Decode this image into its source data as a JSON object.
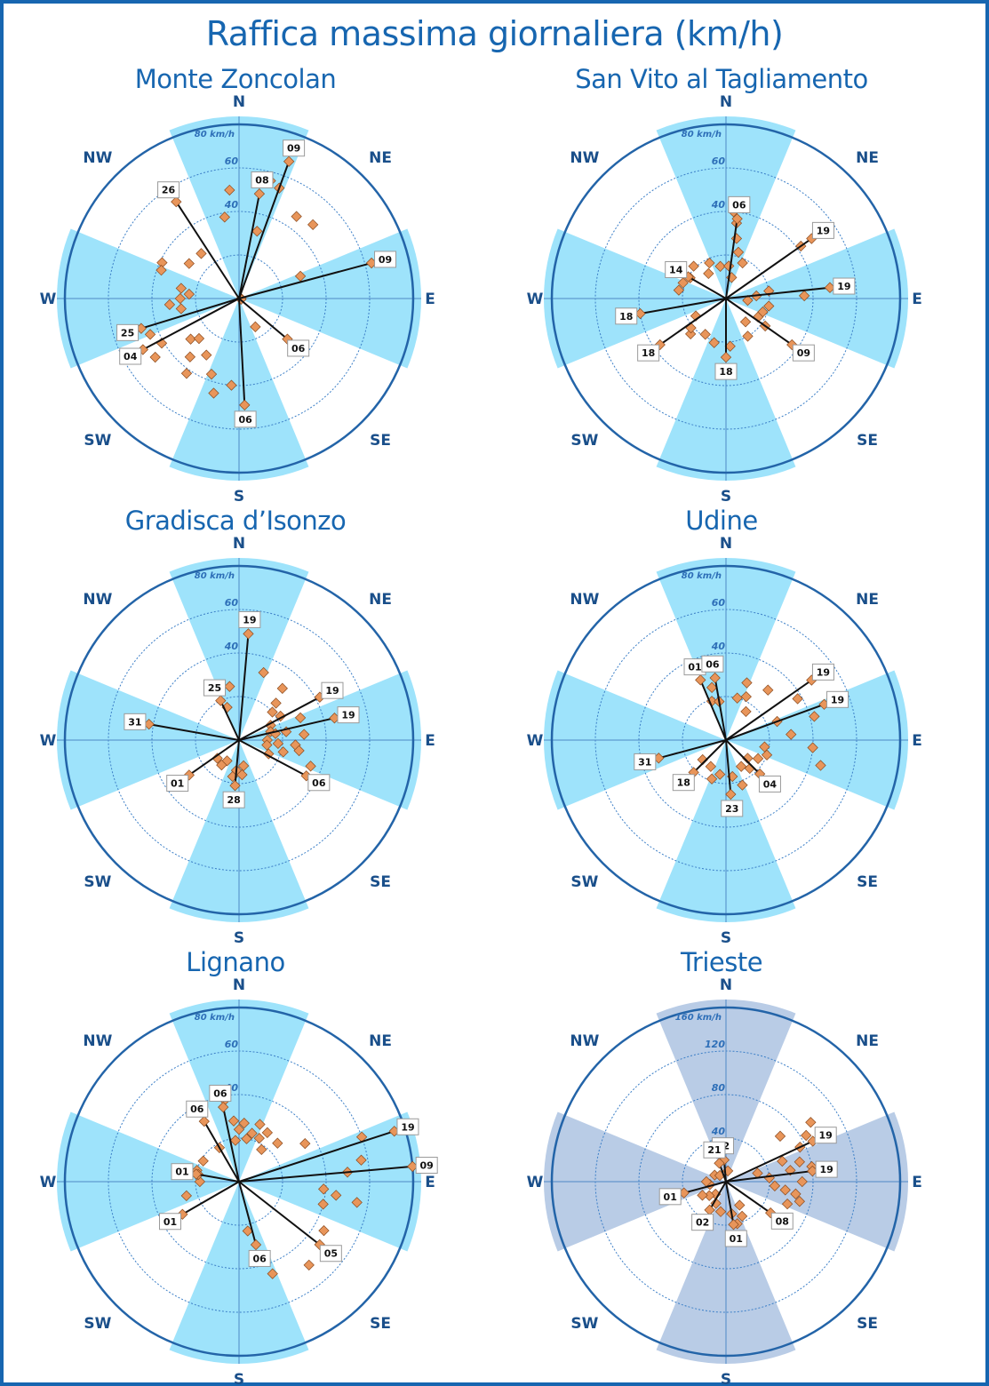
{
  "colors": {
    "frame": "#1766b0",
    "title": "#1766b0",
    "sector": "#9ee3fb",
    "sector_alt": "#b9cce6",
    "ring": "#2364a8",
    "axis": "#4f88c5",
    "label": "#1a4f8a",
    "grid_label": "#2e6fb8",
    "marker": "#e8955a",
    "marker_edge": "#8a4a1e"
  },
  "title": "Raffica massima giornaliera (km/h)",
  "compass": [
    "N",
    "NE",
    "E",
    "SE",
    "S",
    "SW",
    "W",
    "NW"
  ],
  "chart_data": [
    {
      "type": "scatter",
      "station": "Monte Zoncolan",
      "rmax": 80,
      "rmax_label": "80 km/h",
      "grid": [
        20,
        40,
        60
      ],
      "grid_labels": [
        "40",
        "60"
      ],
      "sector_color": "sector",
      "points": [
        [
          15,
          56
        ],
        [
          20,
          54
        ],
        [
          35,
          46
        ],
        [
          45,
          48
        ],
        [
          70,
          30
        ],
        [
          90,
          1
        ],
        [
          110,
          1
        ],
        [
          150,
          15
        ],
        [
          -5,
          50
        ],
        [
          -10,
          38
        ],
        [
          15,
          32
        ],
        [
          -40,
          27
        ],
        [
          -55,
          28
        ],
        [
          -65,
          39
        ],
        [
          -70,
          38
        ],
        [
          -80,
          27
        ],
        [
          -85,
          23
        ],
        [
          -90,
          27
        ],
        [
          -95,
          32
        ],
        [
          -100,
          27
        ],
        [
          -112,
          44
        ],
        [
          -120,
          41
        ],
        [
          -125,
          47
        ],
        [
          -130,
          29
        ],
        [
          -135,
          26
        ],
        [
          -140,
          35
        ],
        [
          -145,
          42
        ],
        [
          -150,
          30
        ],
        [
          -165,
          45
        ],
        [
          -175,
          40
        ],
        [
          -160,
          37
        ]
      ],
      "labels": [
        {
          "day": "09",
          "az": 20,
          "r": 67,
          "line": true
        },
        {
          "day": "08",
          "az": 11,
          "r": 49,
          "line": true
        },
        {
          "day": "09",
          "az": 75,
          "r": 63,
          "line": true
        },
        {
          "day": "06",
          "az": 130,
          "r": 29,
          "line": true
        },
        {
          "day": "06",
          "az": 177,
          "r": 49,
          "line": true
        },
        {
          "day": "26",
          "az": -33,
          "r": 53,
          "line": true
        },
        {
          "day": "25",
          "az": -107,
          "r": 47,
          "line": true
        },
        {
          "day": "04",
          "az": -118,
          "r": 50,
          "line": true
        }
      ]
    },
    {
      "type": "scatter",
      "station": "San Vito al Tagliamento",
      "rmax": 80,
      "rmax_label": "80 km/h",
      "grid": [
        20,
        40,
        60
      ],
      "grid_labels": [
        "40",
        "60"
      ],
      "sector_color": "sector",
      "points": [
        [
          5,
          40
        ],
        [
          8,
          35
        ],
        [
          10,
          28
        ],
        [
          15,
          22
        ],
        [
          25,
          18
        ],
        [
          55,
          42
        ],
        [
          80,
          20
        ],
        [
          85,
          14
        ],
        [
          88,
          36
        ],
        [
          95,
          10
        ],
        [
          100,
          20
        ],
        [
          110,
          18
        ],
        [
          120,
          17
        ],
        [
          125,
          22
        ],
        [
          140,
          14
        ],
        [
          150,
          20
        ],
        [
          175,
          22
        ],
        [
          -165,
          21
        ],
        [
          -150,
          19
        ],
        [
          -135,
          23
        ],
        [
          -130,
          21
        ],
        [
          -120,
          16
        ],
        [
          -80,
          22
        ],
        [
          -70,
          21
        ],
        [
          -60,
          19
        ],
        [
          -45,
          21
        ],
        [
          -35,
          14
        ],
        [
          -25,
          18
        ],
        [
          -10,
          15
        ],
        [
          5,
          15
        ],
        [
          15,
          10
        ]
      ],
      "labels": [
        {
          "day": "06",
          "az": 8,
          "r": 37,
          "line": true
        },
        {
          "day": "19",
          "az": 55,
          "r": 48,
          "line": true
        },
        {
          "day": "19",
          "az": 84,
          "r": 48,
          "line": true
        },
        {
          "day": "14",
          "az": -60,
          "r": 20,
          "line": true
        },
        {
          "day": "18",
          "az": -100,
          "r": 40,
          "line": true
        },
        {
          "day": "18",
          "az": -125,
          "r": 37,
          "line": true
        },
        {
          "day": "18",
          "az": 180,
          "r": 27,
          "line": true
        },
        {
          "day": "09",
          "az": 125,
          "r": 37,
          "line": true
        }
      ]
    },
    {
      "type": "scatter",
      "station": "Gradisca d’Isonzo",
      "rmax": 80,
      "rmax_label": "80 km/h",
      "grid": [
        20,
        40,
        60
      ],
      "grid_labels": [
        "40",
        "60"
      ],
      "sector_color": "sector",
      "points": [
        [
          20,
          33
        ],
        [
          40,
          31
        ],
        [
          45,
          24
        ],
        [
          50,
          20
        ],
        [
          60,
          22
        ],
        [
          70,
          30
        ],
        [
          65,
          16
        ],
        [
          75,
          15
        ],
        [
          80,
          22
        ],
        [
          85,
          30
        ],
        [
          95,
          26
        ],
        [
          100,
          28
        ],
        [
          105,
          21
        ],
        [
          110,
          35
        ],
        [
          80,
          17
        ],
        [
          90,
          13
        ],
        [
          95,
          18
        ],
        [
          100,
          13
        ],
        [
          115,
          15
        ],
        [
          -150,
          11
        ],
        [
          -145,
          14
        ],
        [
          -175,
          14
        ],
        [
          -170,
          17
        ],
        [
          175,
          16
        ],
        [
          170,
          12
        ],
        [
          -130,
          13
        ],
        [
          -10,
          25
        ],
        [
          -20,
          16
        ]
      ],
      "labels": [
        {
          "day": "19",
          "az": 5,
          "r": 49,
          "line": true
        },
        {
          "day": "19",
          "az": 62,
          "r": 42,
          "line": true
        },
        {
          "day": "19",
          "az": 77,
          "r": 45,
          "line": true
        },
        {
          "day": "06",
          "az": 118,
          "r": 35,
          "line": true
        },
        {
          "day": "25",
          "az": -25,
          "r": 20,
          "line": true
        },
        {
          "day": "31",
          "az": -80,
          "r": 42,
          "line": true
        },
        {
          "day": "01",
          "az": -125,
          "r": 28,
          "line": true
        },
        {
          "day": "28",
          "az": -175,
          "r": 21,
          "line": true
        }
      ]
    },
    {
      "type": "scatter",
      "station": "Udine",
      "rmax": 80,
      "rmax_label": "80 km/h",
      "grid": [
        20,
        40,
        60
      ],
      "grid_labels": [
        "40",
        "60"
      ],
      "sector_color": "sector",
      "points": [
        [
          -15,
          25
        ],
        [
          -20,
          19
        ],
        [
          -10,
          18
        ],
        [
          15,
          20
        ],
        [
          25,
          22
        ],
        [
          40,
          30
        ],
        [
          60,
          38
        ],
        [
          70,
          25
        ],
        [
          75,
          42
        ],
        [
          85,
          30
        ],
        [
          95,
          40
        ],
        [
          100,
          18
        ],
        [
          105,
          45
        ],
        [
          110,
          20
        ],
        [
          120,
          17
        ],
        [
          130,
          13
        ],
        [
          140,
          17
        ],
        [
          150,
          14
        ],
        [
          -170,
          16
        ],
        [
          -160,
          19
        ],
        [
          -150,
          14
        ],
        [
          -130,
          14
        ],
        [
          160,
          22
        ],
        [
          170,
          17
        ],
        [
          20,
          28
        ],
        [
          35,
          16
        ]
      ],
      "labels": [
        {
          "day": "01",
          "az": -23,
          "r": 30,
          "line": true
        },
        {
          "day": "06",
          "az": -10,
          "r": 29,
          "line": true
        },
        {
          "day": "19",
          "az": 55,
          "r": 48,
          "line": true
        },
        {
          "day": "19",
          "az": 70,
          "r": 48,
          "line": true
        },
        {
          "day": "31",
          "az": -105,
          "r": 32,
          "line": true
        },
        {
          "day": "18",
          "az": -135,
          "r": 21,
          "line": true
        },
        {
          "day": "04",
          "az": 135,
          "r": 22,
          "line": true
        },
        {
          "day": "23",
          "az": 175,
          "r": 25,
          "line": true
        }
      ]
    },
    {
      "type": "scatter",
      "station": "Lignano",
      "rmax": 80,
      "rmax_label": "80 km/h",
      "grid": [
        20,
        40,
        60
      ],
      "grid_labels": [
        "40",
        "60"
      ],
      "sector_color": "sector",
      "points": [
        [
          -10,
          38
        ],
        [
          -5,
          28
        ],
        [
          0,
          24
        ],
        [
          5,
          27
        ],
        [
          10,
          20
        ],
        [
          15,
          23
        ],
        [
          -5,
          19
        ],
        [
          20,
          28
        ],
        [
          25,
          22
        ],
        [
          30,
          26
        ],
        [
          35,
          18
        ],
        [
          45,
          25
        ],
        [
          60,
          35
        ],
        [
          70,
          60
        ],
        [
          80,
          57
        ],
        [
          85,
          50
        ],
        [
          95,
          39
        ],
        [
          98,
          45
        ],
        [
          100,
          55
        ],
        [
          105,
          40
        ],
        [
          120,
          45
        ],
        [
          140,
          50
        ],
        [
          160,
          45
        ],
        [
          170,
          23
        ],
        [
          -30,
          18
        ],
        [
          -60,
          19
        ],
        [
          -75,
          20
        ],
        [
          -90,
          18
        ],
        [
          -105,
          25
        ],
        [
          -80,
          19
        ]
      ],
      "labels": [
        {
          "day": "06",
          "az": -12,
          "r": 35,
          "line": true
        },
        {
          "day": "06",
          "az": -30,
          "r": 32,
          "line": true
        },
        {
          "day": "19",
          "az": 72,
          "r": 75,
          "line": true
        },
        {
          "day": "09",
          "az": 85,
          "r": 80,
          "line": true
        },
        {
          "day": "01",
          "az": -80,
          "r": 20,
          "line": true
        },
        {
          "day": "01",
          "az": -120,
          "r": 30,
          "line": true
        },
        {
          "day": "05",
          "az": 128,
          "r": 47,
          "line": true
        },
        {
          "day": "06",
          "az": 165,
          "r": 30,
          "line": true
        }
      ]
    },
    {
      "type": "scatter",
      "station": "Trieste",
      "rmax": 160,
      "rmax_label": "160  km/h",
      "grid": [
        40,
        80,
        120
      ],
      "grid_labels": [
        "40",
        "80",
        "120"
      ],
      "sector_color": "sector_alt",
      "points": [
        [
          55,
          95
        ],
        [
          60,
          85
        ],
        [
          65,
          75
        ],
        [
          75,
          70
        ],
        [
          80,
          60
        ],
        [
          85,
          40
        ],
        [
          90,
          70
        ],
        [
          95,
          45
        ],
        [
          98,
          55
        ],
        [
          100,
          65
        ],
        [
          105,
          70
        ],
        [
          110,
          60
        ],
        [
          80,
          80
        ],
        [
          70,
          55
        ],
        [
          75,
          30
        ],
        [
          150,
          25
        ],
        [
          155,
          35
        ],
        [
          165,
          40
        ],
        [
          170,
          30
        ],
        [
          -170,
          28
        ],
        [
          -155,
          22
        ],
        [
          -140,
          15
        ],
        [
          -130,
          20
        ],
        [
          -120,
          25
        ],
        [
          -100,
          15
        ],
        [
          -90,
          18
        ],
        [
          -60,
          12
        ],
        [
          -45,
          8
        ],
        [
          10,
          10
        ],
        [
          50,
          65
        ]
      ],
      "labels": [
        {
          "day": "12",
          "az": -5,
          "r": 20,
          "line": true
        },
        {
          "day": "21",
          "az": -20,
          "r": 18,
          "line": true
        },
        {
          "day": "19",
          "az": 65,
          "r": 88,
          "line": true
        },
        {
          "day": "19",
          "az": 83,
          "r": 80,
          "line": true
        },
        {
          "day": "01",
          "az": -105,
          "r": 40,
          "line": true
        },
        {
          "day": "02",
          "az": -150,
          "r": 30,
          "line": true
        },
        {
          "day": "01",
          "az": 170,
          "r": 40,
          "line": true
        },
        {
          "day": "08",
          "az": 125,
          "r": 50,
          "line": true
        }
      ]
    }
  ]
}
